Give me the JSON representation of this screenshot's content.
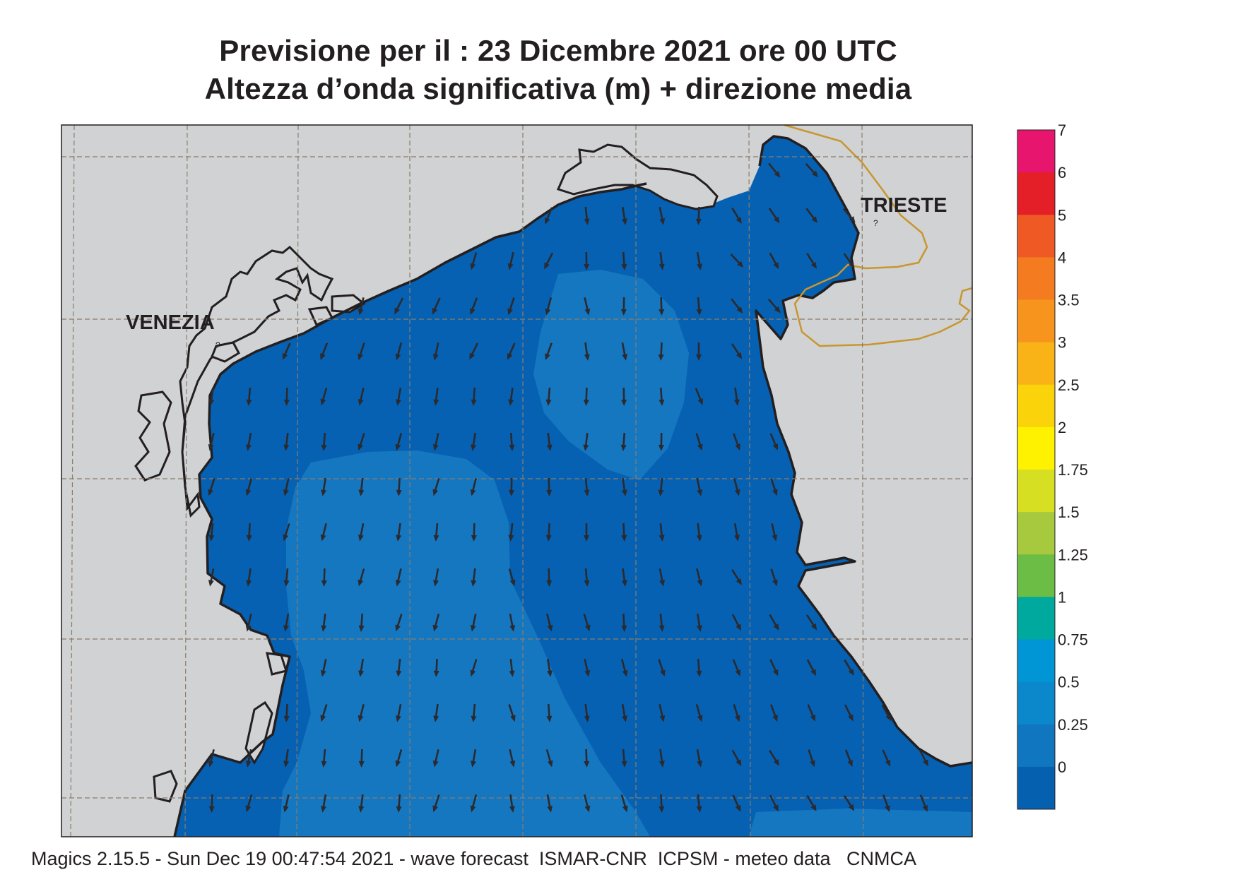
{
  "title_line1": "Previsione per il  :  23 Dicembre  2021   ore 00 UTC",
  "title_line2": "Altezza d’onda significativa (m) + direzione media",
  "cities": [
    "VENEZIA",
    "TRIESTE"
  ],
  "city_marker": "?",
  "footer": "Magics 2.15.5 - Sun Dec 19 00:47:54 2021 - wave forecast  ISMAR-CNR  ICPSM - meteo data   CNMCA",
  "legend": {
    "labels": [
      "7",
      "6",
      "5",
      "4",
      "3.5",
      "3",
      "2.5",
      "2",
      "1.75",
      "1.5",
      "1.25",
      "1",
      "0.75",
      "0.5",
      "0.25",
      "0"
    ],
    "colors": [
      "#e8156e",
      "#e41f28",
      "#ef5a24",
      "#f47b20",
      "#f7941d",
      "#f9b316",
      "#fbd30a",
      "#fff200",
      "#d7df23",
      "#a7c93d",
      "#6bbd45",
      "#00a99d",
      "#0096d6",
      "#0a88cb",
      "#1176c0",
      "#0660b0"
    ]
  },
  "colors": {
    "land": "#d1d2d4",
    "sea_base": "#0661b2",
    "sea_mid": "#1677c1",
    "sea_light": "#0a86c8",
    "coast": "#231f20",
    "border": "#c8962e",
    "grid": "#8a7d6b",
    "arrow": "#2b2a2e"
  }
}
